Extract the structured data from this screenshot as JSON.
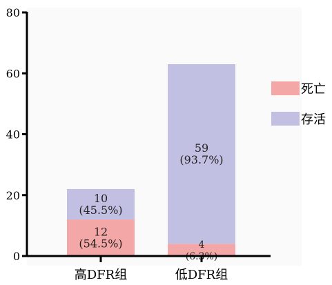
{
  "chart_data": {
    "type": "bar",
    "stacked": true,
    "categories": [
      "高DFR组",
      "低DFR组"
    ],
    "series": [
      {
        "name": "死亡",
        "color": "#f4a7a7",
        "values": [
          12,
          4
        ],
        "labels": [
          [
            "12",
            "(54.5%)"
          ],
          [
            "4",
            "(6.3%)"
          ]
        ]
      },
      {
        "name": "存活",
        "color": "#c2c0e2",
        "values": [
          10,
          59
        ],
        "labels": [
          [
            "10",
            "(45.5%)"
          ],
          [
            "59",
            "(93.7%)"
          ]
        ]
      }
    ],
    "y_ticks": [
      0,
      20,
      40,
      60,
      80
    ],
    "ylim": [
      0,
      80
    ],
    "grid": false,
    "legend": "right",
    "plot_background": "#fafafa"
  }
}
